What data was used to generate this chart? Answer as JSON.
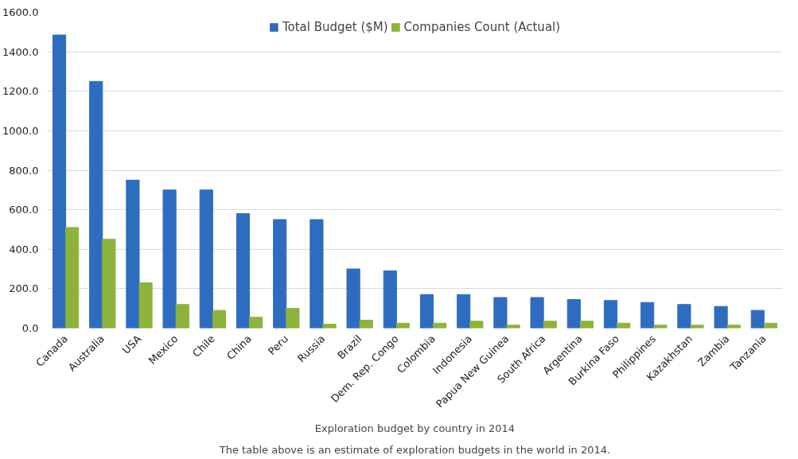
{
  "chart_data": {
    "type": "bar",
    "categories": [
      "Canada",
      "Australia",
      "USA",
      "Mexico",
      "Chile",
      "China",
      "Peru",
      "Russia",
      "Brazil",
      "Dem. Rep. Congo",
      "Colombia",
      "Indonesia",
      "Papua New Guinea",
      "South Africa",
      "Argentina",
      "Burkina Faso",
      "Philippines",
      "Kazakhstan",
      "Zambia",
      "Tanzania"
    ],
    "series": [
      {
        "name": "Total Budget ($M)",
        "color": "#2e6cc0",
        "values": [
          1485,
          1250,
          750,
          700,
          700,
          580,
          550,
          550,
          300,
          290,
          170,
          170,
          155,
          155,
          145,
          140,
          130,
          120,
          110,
          90
        ]
      },
      {
        "name": "Companies Count (Actual)",
        "color": "#8db33a",
        "values": [
          510,
          450,
          230,
          120,
          90,
          55,
          100,
          20,
          40,
          25,
          25,
          35,
          15,
          35,
          35,
          25,
          15,
          15,
          15,
          25
        ]
      }
    ],
    "ylim": [
      0,
      1600
    ],
    "yticks": [
      {
        "value": 0,
        "label": "0.0"
      },
      {
        "value": 200,
        "label": "200.0"
      },
      {
        "value": 400,
        "label": "400.0"
      },
      {
        "value": 600,
        "label": "600.0"
      },
      {
        "value": 800,
        "label": "800.0"
      },
      {
        "value": 1000,
        "label": "1000.0"
      },
      {
        "value": 1200,
        "label": "1200.0"
      },
      {
        "value": 1400,
        "label": "1400.0"
      },
      {
        "value": 1600,
        "label": "1600.0"
      }
    ],
    "grid": "y",
    "legend": "top",
    "annotations": [
      "Exploration budget by country in 2014",
      "The table above is an estimate of exploration budgets in the world in 2014."
    ]
  }
}
